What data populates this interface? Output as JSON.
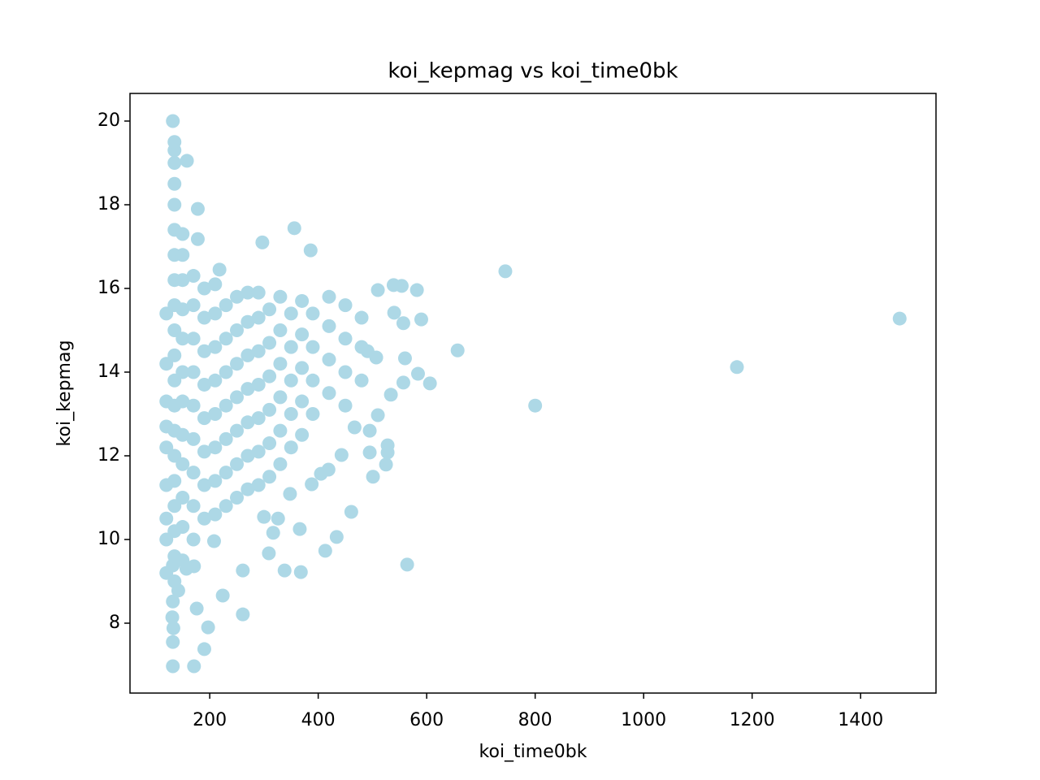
{
  "chart_data": {
    "type": "scatter",
    "title": "koi_kepmag vs koi_time0bk",
    "x_label": "koi_time0bk",
    "y_label": "koi_kepmag",
    "color": "#add8e6",
    "xlim": [
      53,
      1539
    ],
    "ylim": [
      6.33,
      20.66
    ],
    "xticks": [
      200,
      400,
      600,
      800,
      1000,
      1200,
      1400
    ],
    "yticks": [
      8,
      10,
      12,
      14,
      16,
      18,
      20
    ],
    "x": [
      1472,
      1172,
      800,
      745,
      657,
      564,
      606,
      582,
      590,
      356,
      386,
      297,
      132,
      158,
      178,
      178,
      132,
      171,
      190,
      197,
      176,
      224,
      261,
      261,
      338,
      368,
      309,
      413,
      434,
      461,
      366,
      317,
      132,
      133,
      131,
      132,
      142,
      132,
      208,
      171,
      157,
      528,
      525,
      528,
      495,
      501,
      419,
      405,
      388,
      348,
      326,
      300,
      218,
      539,
      554,
      510,
      557,
      560,
      584,
      557,
      534,
      510,
      495,
      467,
      443,
      491,
      507,
      540,
      120,
      120,
      120,
      120,
      120,
      120,
      120,
      120,
      120,
      135,
      135,
      135,
      135,
      135,
      135,
      135,
      135,
      135,
      135,
      135,
      135,
      135,
      135,
      135,
      135,
      135,
      135,
      135,
      135,
      150,
      150,
      150,
      150,
      150,
      150,
      150,
      150,
      150,
      150,
      150,
      150,
      170,
      170,
      170,
      170,
      170,
      170,
      170,
      170,
      170,
      190,
      190,
      190,
      190,
      190,
      190,
      190,
      190,
      210,
      210,
      210,
      210,
      210,
      210,
      210,
      210,
      230,
      230,
      230,
      230,
      230,
      230,
      230,
      250,
      250,
      250,
      250,
      250,
      250,
      250,
      270,
      270,
      270,
      270,
      270,
      270,
      270,
      290,
      290,
      290,
      290,
      290,
      290,
      290,
      310,
      310,
      310,
      310,
      310,
      310,
      330,
      330,
      330,
      330,
      330,
      330,
      350,
      350,
      350,
      350,
      350,
      370,
      370,
      370,
      370,
      370,
      390,
      390,
      390,
      390,
      420,
      420,
      420,
      420,
      450,
      450,
      450,
      450,
      480,
      480,
      480
    ],
    "values": [
      15.28,
      14.12,
      13.2,
      16.41,
      14.52,
      9.4,
      13.73,
      15.96,
      15.26,
      17.44,
      16.91,
      17.1,
      20,
      19.05,
      17.9,
      17.18,
      6.97,
      6.97,
      7.38,
      7.9,
      8.35,
      8.66,
      8.21,
      9.26,
      9.26,
      9.22,
      9.67,
      9.73,
      10.06,
      10.66,
      10.25,
      10.16,
      7.55,
      7.88,
      8.14,
      8.52,
      8.78,
      9.38,
      9.96,
      9.36,
      9.3,
      12.25,
      11.79,
      12.08,
      12.08,
      11.5,
      11.67,
      11.57,
      11.32,
      11.09,
      10.5,
      10.54,
      16.45,
      16.08,
      16.06,
      15.96,
      15.17,
      14.33,
      13.96,
      13.75,
      13.46,
      12.97,
      12.6,
      12.68,
      12.02,
      14.5,
      14.35,
      15.42,
      9.2,
      10,
      10.5,
      11.3,
      12.2,
      12.7,
      13.3,
      14.2,
      15.4,
      9,
      9.6,
      10.2,
      10.8,
      11.4,
      12,
      12.6,
      13.2,
      13.8,
      14.4,
      15,
      15.6,
      16.2,
      16.8,
      17.4,
      18,
      18.5,
      19,
      19.3,
      19.5,
      9.5,
      10.3,
      11,
      11.8,
      12.5,
      13.3,
      14,
      14.8,
      15.5,
      16.2,
      16.8,
      17.3,
      10,
      10.8,
      11.6,
      12.4,
      13.2,
      14,
      14.8,
      15.6,
      16.3,
      10.5,
      11.3,
      12.1,
      12.9,
      13.7,
      14.5,
      15.3,
      16,
      10.6,
      11.4,
      12.2,
      13,
      13.8,
      14.6,
      15.4,
      16.1,
      10.8,
      11.6,
      12.4,
      13.2,
      14,
      14.8,
      15.6,
      11,
      11.8,
      12.6,
      13.4,
      14.2,
      15,
      15.8,
      11.2,
      12,
      12.8,
      13.6,
      14.4,
      15.2,
      15.9,
      11.3,
      12.1,
      12.9,
      13.7,
      14.5,
      15.3,
      15.9,
      11.5,
      12.3,
      13.1,
      13.9,
      14.7,
      15.5,
      11.8,
      12.6,
      13.4,
      14.2,
      15,
      15.8,
      12.2,
      13,
      13.8,
      14.6,
      15.4,
      12.5,
      13.3,
      14.1,
      14.9,
      15.7,
      13,
      13.8,
      14.6,
      15.4,
      13.5,
      14.3,
      15.1,
      15.8,
      13.2,
      14,
      14.8,
      15.6,
      13.8,
      14.6,
      15.3
    ]
  }
}
